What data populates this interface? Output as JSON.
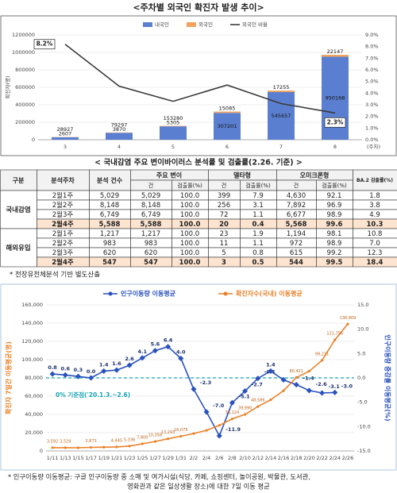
{
  "chart_data": [
    {
      "type": "bar",
      "stacked": true,
      "title": "<주차별 외국인 확진자 발생 추이>",
      "ylabel": "확진자(명)",
      "xlabel": "(주차)",
      "categories": [
        "3",
        "4",
        "5",
        "6",
        "7",
        "8"
      ],
      "series": [
        {
          "name": "내국인",
          "color": "#5b7fd0",
          "values": [
            28927,
            79297,
            153280,
            307201,
            545657,
            950168
          ]
        },
        {
          "name": "외국인",
          "color": "#f0a35e",
          "values": [
            2607,
            3870,
            5305,
            15085,
            17255,
            22147
          ]
        },
        {
          "name": "외국인 비율",
          "type": "line",
          "axis": "y2",
          "color": "#3a3a3a",
          "values": [
            8.2,
            4.6,
            3.3,
            4.7,
            3.1,
            2.3
          ],
          "value_labels": [
            "8.2%",
            null,
            null,
            null,
            null,
            "2.3%"
          ]
        }
      ],
      "ylim": [
        0,
        1200000
      ],
      "yticks": [
        0,
        200000,
        400000,
        600000,
        800000,
        1000000,
        1200000
      ],
      "y2lim": [
        0,
        9
      ],
      "y2ticks": [
        {
          "value": 0,
          "label": "0.0%"
        },
        {
          "value": 1,
          "label": "1.0%"
        },
        {
          "value": 2,
          "label": "2.0%"
        },
        {
          "value": 3,
          "label": "3.0%"
        },
        {
          "value": 4,
          "label": "4.0%"
        },
        {
          "value": 5,
          "label": "5.0%"
        },
        {
          "value": 6,
          "label": "6.0%"
        },
        {
          "value": 7,
          "label": "7.0%"
        },
        {
          "value": 8,
          "label": "8.0%"
        },
        {
          "value": 9,
          "label": "9.0%"
        }
      ],
      "grid": true
    },
    {
      "type": "line",
      "ylabel": "확진자 7일간 이동평균(명)",
      "y2label": "인구이동량 증감률 이동평균(%)",
      "annotation": "0% 기준점('20.1.3.~2.6)",
      "categories": [
        "1/11",
        "1/13",
        "1/15",
        "1/17",
        "1/19",
        "1/21",
        "1/23",
        "1/25",
        "1/27",
        "1/29",
        "1/31",
        "2/2",
        "2/4",
        "2/6",
        "2/8",
        "2/10",
        "2/12",
        "2/14",
        "2/16",
        "2/18",
        "2/20",
        "2/22",
        "2/24",
        "2/26"
      ],
      "series": [
        {
          "name": "인구이동량 이동평균",
          "axis": "y2",
          "color": "#2a52be",
          "values": [
            0.8,
            0.6,
            0.3,
            0.0,
            1.4,
            1.6,
            2.6,
            4.1,
            5.6,
            6.4,
            4.0,
            -2.3,
            -7.0,
            -11.9,
            -5.1,
            -2.7,
            -0.1,
            1.4,
            -0.4,
            -1.4,
            -2.6,
            -3.1,
            -3.0,
            null
          ],
          "value_labels": [
            "0.8",
            "0.6",
            "0.3",
            "0.0",
            "1.4",
            "1.6",
            "2.6",
            "4.1",
            "5.6",
            "6.4",
            "4.0",
            "-2.3",
            "-7.0",
            "-11.9",
            "-5.1",
            "-2.7",
            "-0.1",
            "1.4",
            null,
            "-1.4",
            "-2.6",
            "-3.1",
            "-3.0",
            null
          ]
        },
        {
          "name": "확진자수(국내) 이동평균",
          "color": "#e8822a",
          "values": [
            3592,
            3529,
            3450,
            3873,
            4100,
            4445,
            5336,
            7800,
            10358,
            13293,
            16075,
            19000,
            22500,
            28000,
            35124,
            39990,
            48586,
            56000,
            66000,
            80421,
            87300,
            99211,
            121756,
            138909
          ],
          "value_labels": [
            "3,592",
            "3,529",
            null,
            "3,873",
            null,
            "4,445",
            "5,336",
            "7,800",
            "10,358",
            "13,293",
            "16,075",
            null,
            null,
            null,
            "35,124",
            "39,990",
            "48,586",
            null,
            null,
            "80,421",
            null,
            "99,211",
            "121,756",
            "138,909"
          ]
        }
      ],
      "ylim": [
        0,
        160000
      ],
      "yticks": [
        0,
        {
          "value": 20000,
          "label": "20,000"
        },
        {
          "value": 40000,
          "label": "40,000"
        },
        {
          "value": 60000,
          "label": "60,000"
        },
        {
          "value": 80000,
          "label": "80,000"
        },
        {
          "value": 100000,
          "label": "100,000"
        },
        {
          "value": 120000,
          "label": "120,000"
        },
        {
          "value": 140000,
          "label": "140,000"
        },
        {
          "value": 160000,
          "label": "160,000"
        }
      ],
      "y2lim": [
        -15,
        15
      ],
      "y2ticks": [
        {
          "value": -15,
          "label": "-15.0"
        },
        {
          "value": -10,
          "label": "-10.0"
        },
        {
          "value": -5,
          "label": "-5.0"
        },
        {
          "value": 0,
          "label": "0.0"
        },
        {
          "value": 5,
          "label": "5.0"
        },
        {
          "value": 10,
          "label": "10.0"
        },
        {
          "value": 15,
          "label": "15.0"
        }
      ],
      "grid": true,
      "zero_line": true,
      "note": [
        "* 인구이동량 이동평균: 구글 인구이동량 중 소매 및 여가시설(식당, 카페, 쇼핑센터, 놀이공원, 박물관, 도서관,",
        "영화관과 같은 일상생활 장소)에 대한 7일 이동 평균"
      ]
    }
  ],
  "table": {
    "title": "< 국내감염 주요 변이바이러스 분석률 및 검출률(2.26. 기준) >",
    "header": [
      "구분",
      "분석주차",
      "분석 건수",
      "주요 변이",
      "델타형",
      "오미크론형",
      "BA.2 검출률(%)"
    ],
    "subheader": [
      "건",
      "검출률(%)",
      "건",
      "검출률(%)",
      "건",
      "검출률(%)"
    ],
    "groups": [
      {
        "name": "국내감염",
        "rows": [
          [
            "2월1주",
            "5,029",
            "5,029",
            "100.0",
            "399",
            "7.9",
            "4,630",
            "92.1",
            "1.8"
          ],
          [
            "2월2주",
            "8,148",
            "8,148",
            "100.0",
            "256",
            "3.1",
            "7,892",
            "96.9",
            "3.8"
          ],
          [
            "2월3주",
            "6,749",
            "6,749",
            "100.0",
            "72",
            "1.1",
            "6,677",
            "98.9",
            "4.9"
          ],
          [
            "2월4주",
            "5,588",
            "5,588",
            "100.0",
            "20",
            "0.4",
            "5,568",
            "99.6",
            "10.3"
          ]
        ]
      },
      {
        "name": "해외유입",
        "rows": [
          [
            "2월1주",
            "1,217",
            "1,217",
            "100.0",
            "23",
            "1.9",
            "1,194",
            "98.1",
            "10.8"
          ],
          [
            "2월2주",
            "983",
            "983",
            "100.0",
            "11",
            "1.1",
            "972",
            "98.9",
            "7.0"
          ],
          [
            "2월3주",
            "620",
            "620",
            "100.0",
            "5",
            "0.8",
            "615",
            "99.2",
            "12.3"
          ],
          [
            "2월4주",
            "547",
            "547",
            "100.0",
            "3",
            "0.5",
            "544",
            "99.5",
            "18.4"
          ]
        ]
      }
    ],
    "footnote": "* 전장유전체분석 기반 별도산출"
  }
}
